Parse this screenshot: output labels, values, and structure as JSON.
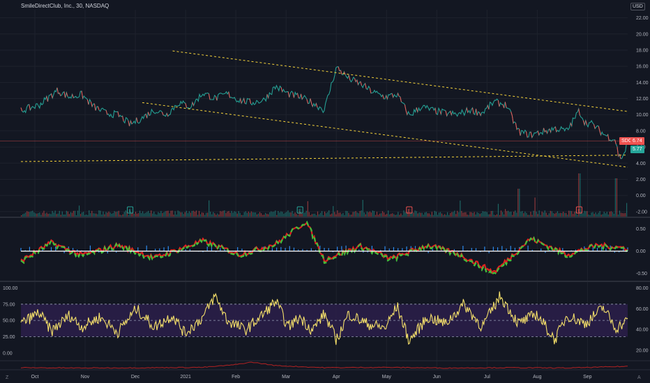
{
  "header": {
    "symbol_title": "SmileDirectClub, Inc., 30, NASDAQ",
    "currency": "USD"
  },
  "badges": {
    "sdc_label": "SDC",
    "sdc_value": "6.74",
    "ma_value": "5.77"
  },
  "corner_labels": {
    "left": "Z",
    "right": "A"
  },
  "colors": {
    "background": "#131722",
    "grid": "#1e222d",
    "price_line": "#26a69a",
    "price_line_down": "#ef5350",
    "trendline": "#f5d33b",
    "rsi_line": "#f5e06a",
    "rsi_band": "#2b1e4a",
    "osc_green": "#43c03a",
    "osc_red": "#e02020",
    "osc_blue": "#2e8cf0",
    "dmi_line": "#b22222",
    "earnings_green": "#26a69a",
    "earnings_red": "#ef5350"
  },
  "chart_data": [
    {
      "type": "line",
      "panel": "price",
      "x_labels": [
        "Oct",
        "Nov",
        "Dec",
        "2021",
        "Feb",
        "Mar",
        "Apr",
        "May",
        "Jun",
        "Jul",
        "Aug",
        "Sep"
      ],
      "y_ticks": [
        "22.00",
        "20.00",
        "18.00",
        "16.00",
        "14.00",
        "12.00",
        "10.00",
        "8.00",
        "6.00",
        "4.00",
        "2.00",
        "0.00",
        "-2.00"
      ],
      "ylim": [
        -2.7,
        23
      ],
      "close_path": [
        [
          0,
          10.5
        ],
        [
          0.03,
          11.2
        ],
        [
          0.06,
          13.0
        ],
        [
          0.08,
          12.2
        ],
        [
          0.1,
          12.5
        ],
        [
          0.12,
          11.0
        ],
        [
          0.14,
          10.2
        ],
        [
          0.16,
          10.0
        ],
        [
          0.18,
          8.8
        ],
        [
          0.2,
          9.6
        ],
        [
          0.22,
          10.6
        ],
        [
          0.24,
          10.0
        ],
        [
          0.26,
          11.5
        ],
        [
          0.28,
          11.0
        ],
        [
          0.3,
          12.7
        ],
        [
          0.32,
          12.0
        ],
        [
          0.34,
          12.6
        ],
        [
          0.36,
          11.8
        ],
        [
          0.38,
          11.5
        ],
        [
          0.4,
          11.8
        ],
        [
          0.42,
          13.5
        ],
        [
          0.44,
          12.6
        ],
        [
          0.46,
          12.2
        ],
        [
          0.48,
          11.5
        ],
        [
          0.5,
          10.6
        ],
        [
          0.52,
          15.9
        ],
        [
          0.54,
          14.5
        ],
        [
          0.56,
          13.8
        ],
        [
          0.58,
          12.8
        ],
        [
          0.6,
          12.2
        ],
        [
          0.62,
          12.5
        ],
        [
          0.64,
          9.9
        ],
        [
          0.66,
          11.0
        ],
        [
          0.68,
          10.5
        ],
        [
          0.7,
          10.2
        ],
        [
          0.72,
          10.0
        ],
        [
          0.74,
          10.6
        ],
        [
          0.76,
          10.2
        ],
        [
          0.78,
          11.6
        ],
        [
          0.8,
          11.2
        ],
        [
          0.82,
          7.9
        ],
        [
          0.84,
          7.5
        ],
        [
          0.86,
          7.9
        ],
        [
          0.88,
          8.3
        ],
        [
          0.9,
          8.0
        ],
        [
          0.92,
          10.5
        ],
        [
          0.93,
          9.0
        ],
        [
          0.94,
          8.9
        ],
        [
          0.95,
          8.3
        ],
        [
          0.96,
          7.6
        ],
        [
          0.97,
          7.2
        ],
        [
          0.98,
          6.9
        ],
        [
          0.985,
          4.9
        ],
        [
          0.99,
          4.7
        ],
        [
          0.995,
          5.3
        ],
        [
          1.0,
          6.74
        ]
      ],
      "last_close": 6.74,
      "moving_average_last": 5.77,
      "trendlines": [
        {
          "from": [
            0.25,
            17.9
          ],
          "to": [
            1.0,
            10.4
          ]
        },
        {
          "from": [
            0.2,
            11.5
          ],
          "to": [
            1.0,
            3.5
          ]
        },
        {
          "from": [
            0.0,
            4.2
          ],
          "to": [
            1.0,
            5.0
          ]
        }
      ],
      "earnings_markers": [
        {
          "x": 0.18,
          "label": "E",
          "kind": "green"
        },
        {
          "x": 0.46,
          "label": "E",
          "kind": "green"
        },
        {
          "x": 0.64,
          "label": "E",
          "kind": "red"
        },
        {
          "x": 0.92,
          "label": "E",
          "kind": "red"
        }
      ],
      "grid": true
    },
    {
      "type": "line",
      "panel": "oscillator",
      "y_ticks": [
        "0.50",
        "0.00",
        "-0.50"
      ],
      "ylim": [
        -0.65,
        0.7
      ],
      "series_note_colors": [
        "green",
        "red",
        "blue"
      ],
      "key_points": [
        [
          0.0,
          -0.25
        ],
        [
          0.05,
          0.18
        ],
        [
          0.1,
          -0.12
        ],
        [
          0.16,
          0.12
        ],
        [
          0.22,
          -0.18
        ],
        [
          0.3,
          0.22
        ],
        [
          0.36,
          -0.1
        ],
        [
          0.42,
          0.15
        ],
        [
          0.47,
          0.68
        ],
        [
          0.5,
          -0.22
        ],
        [
          0.56,
          0.1
        ],
        [
          0.61,
          -0.2
        ],
        [
          0.67,
          0.12
        ],
        [
          0.72,
          -0.08
        ],
        [
          0.78,
          -0.52
        ],
        [
          0.84,
          0.28
        ],
        [
          0.9,
          -0.1
        ],
        [
          0.95,
          0.12
        ],
        [
          1.0,
          0.05
        ]
      ]
    },
    {
      "type": "line",
      "panel": "rsi",
      "left_ticks": [
        "100.00",
        "75.00",
        "50.00",
        "25.00",
        "0.00"
      ],
      "right_ticks": [
        "80.00",
        "60.00",
        "40.00",
        "20.00"
      ],
      "ylim": [
        -12,
        108
      ],
      "band": [
        25,
        75
      ],
      "midline": 50,
      "key_points": [
        [
          0.0,
          45
        ],
        [
          0.03,
          62
        ],
        [
          0.05,
          33
        ],
        [
          0.08,
          58
        ],
        [
          0.1,
          40
        ],
        [
          0.13,
          55
        ],
        [
          0.16,
          32
        ],
        [
          0.19,
          68
        ],
        [
          0.22,
          40
        ],
        [
          0.25,
          58
        ],
        [
          0.27,
          30
        ],
        [
          0.3,
          55
        ],
        [
          0.32,
          88
        ],
        [
          0.34,
          50
        ],
        [
          0.37,
          35
        ],
        [
          0.4,
          60
        ],
        [
          0.42,
          80
        ],
        [
          0.44,
          40
        ],
        [
          0.46,
          55
        ],
        [
          0.48,
          35
        ],
        [
          0.5,
          60
        ],
        [
          0.52,
          20
        ],
        [
          0.54,
          60
        ],
        [
          0.57,
          45
        ],
        [
          0.6,
          38
        ],
        [
          0.62,
          72
        ],
        [
          0.64,
          18
        ],
        [
          0.67,
          55
        ],
        [
          0.7,
          45
        ],
        [
          0.73,
          75
        ],
        [
          0.76,
          40
        ],
        [
          0.79,
          88
        ],
        [
          0.82,
          45
        ],
        [
          0.85,
          60
        ],
        [
          0.88,
          20
        ],
        [
          0.9,
          58
        ],
        [
          0.93,
          45
        ],
        [
          0.96,
          70
        ],
        [
          0.98,
          38
        ],
        [
          1.0,
          50
        ]
      ]
    },
    {
      "type": "line",
      "panel": "bottom_indicator",
      "key_points": [
        [
          0.0,
          0.2
        ],
        [
          0.1,
          0.15
        ],
        [
          0.2,
          0.18
        ],
        [
          0.3,
          0.25
        ],
        [
          0.35,
          0.6
        ],
        [
          0.38,
          1.0
        ],
        [
          0.42,
          0.5
        ],
        [
          0.5,
          0.2
        ],
        [
          0.6,
          0.25
        ],
        [
          0.7,
          0.15
        ],
        [
          0.8,
          0.2
        ],
        [
          0.9,
          0.15
        ],
        [
          1.0,
          0.4
        ]
      ]
    }
  ]
}
